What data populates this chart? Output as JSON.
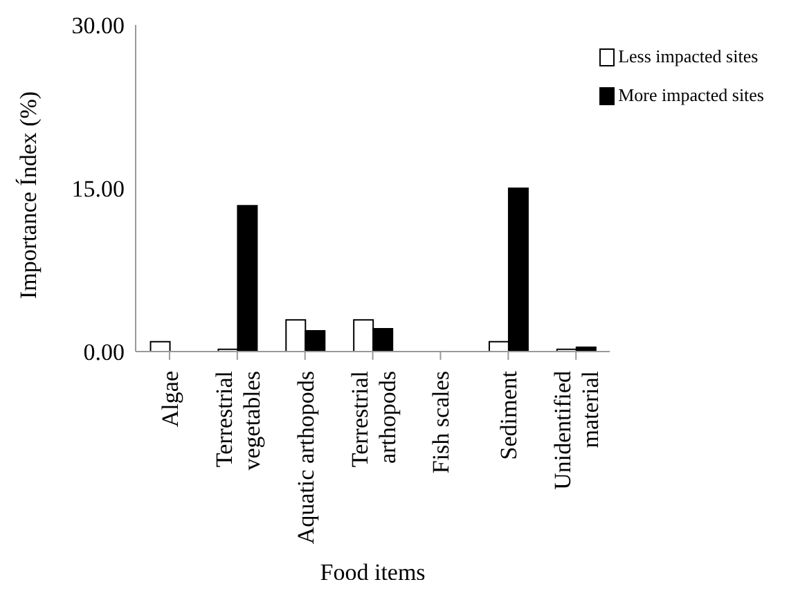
{
  "chart_data": {
    "type": "bar",
    "xlabel": "Food items",
    "ylabel": "Importance Índex (%)",
    "categories": [
      "Algae",
      "Terrestrial\nvegetables",
      "Aquatic arthopods",
      "Terrestrial\narthopods",
      "Fish scales",
      "Sediment",
      "Unidentified\nmaterial"
    ],
    "series": [
      {
        "name": "Less impacted sites",
        "color": "#ffffff",
        "values": [
          0.9,
          0.2,
          2.9,
          2.9,
          0,
          0.9,
          0.2
        ]
      },
      {
        "name": "More impacted sites",
        "color": "#000000",
        "values": [
          0,
          13.4,
          1.9,
          2.1,
          0,
          15.0,
          0.4
        ]
      }
    ],
    "ylim": [
      0,
      30
    ],
    "yticks": [
      {
        "value": 0,
        "label": "0.00"
      },
      {
        "value": 15,
        "label": "15.00"
      },
      {
        "value": 30,
        "label": "30.00"
      }
    ],
    "grid": false,
    "legend": "top right"
  }
}
